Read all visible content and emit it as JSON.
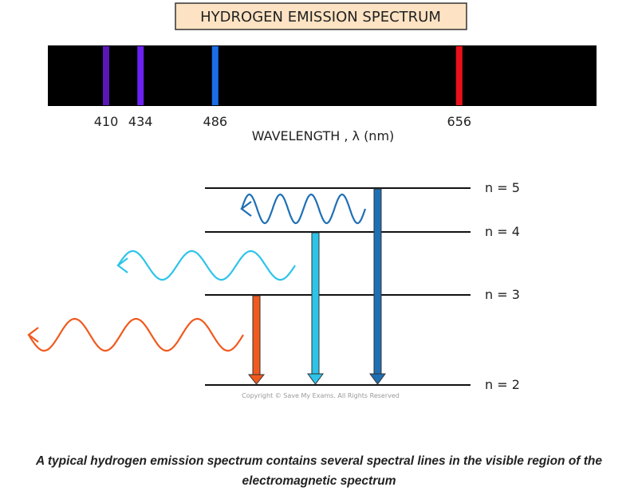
{
  "title": "HYDROGEN  EMISSION  SPECTRUM",
  "spectrum": {
    "lines": [
      {
        "wavelength": 410,
        "color": "#5b17b5"
      },
      {
        "wavelength": 434,
        "color": "#6a22f0"
      },
      {
        "wavelength": 486,
        "color": "#1a6ee8"
      },
      {
        "wavelength": 656,
        "color": "#e8101a"
      }
    ],
    "axis_label": "WAVELENGTH , λ (nm)"
  },
  "levels": [
    "n = 5",
    "n = 4",
    "n = 3",
    "n = 2"
  ],
  "copyright": "Copyright © Save My Exams. All Rights Reserved",
  "caption": "A typical hydrogen emission spectrum contains several spectral lines in the visible region of the electromagnetic spectrum"
}
